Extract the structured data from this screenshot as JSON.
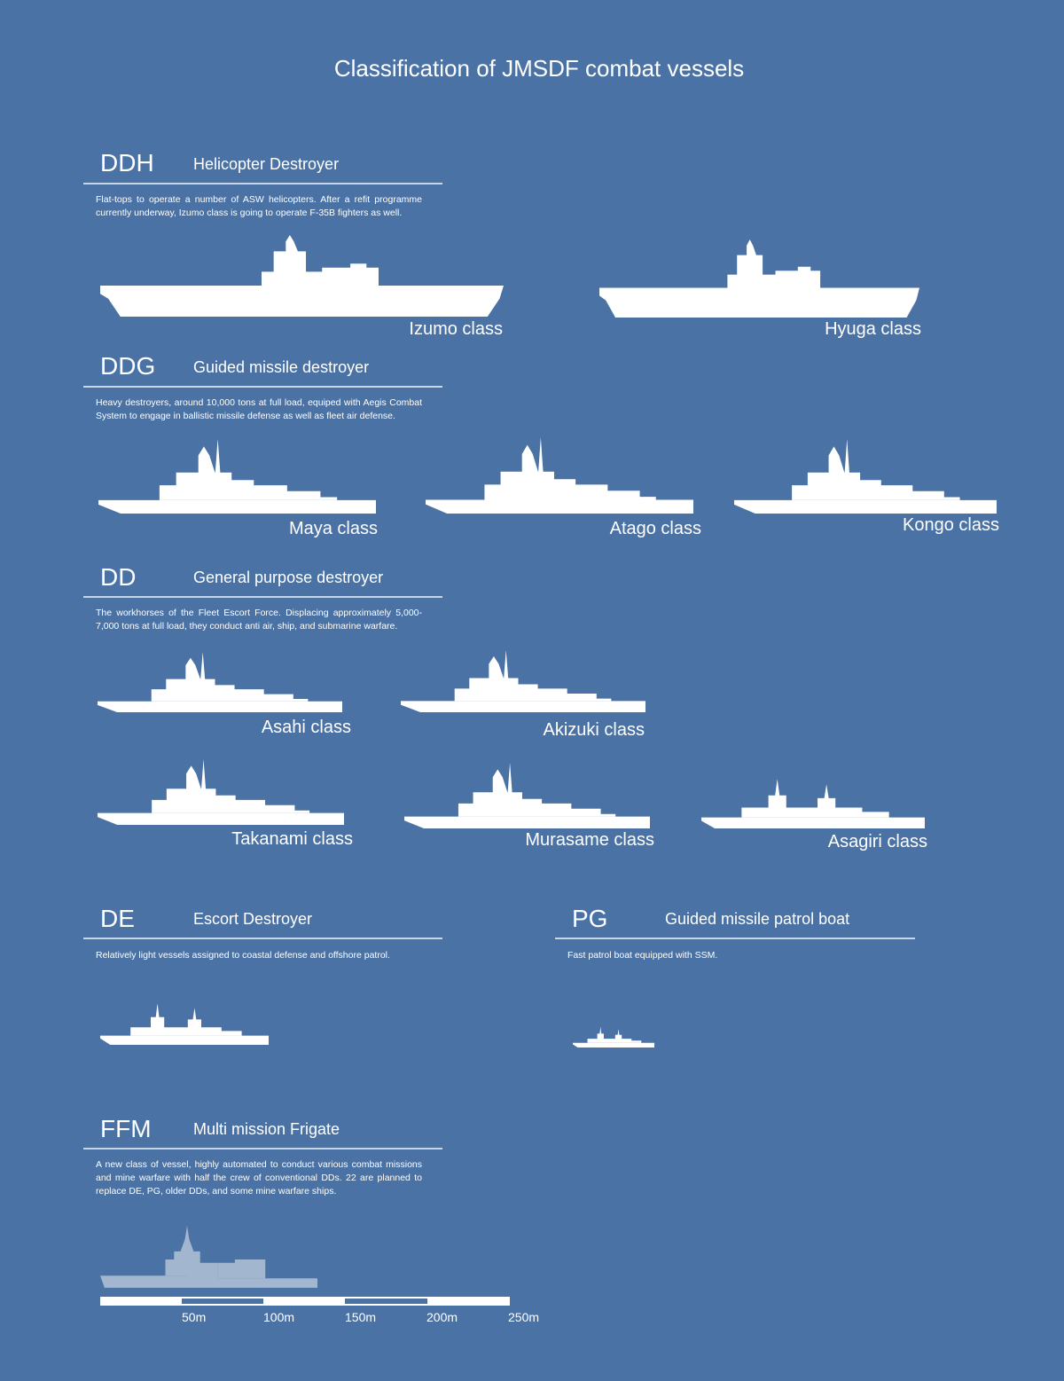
{
  "title": "Classification of JMSDF combat vessels",
  "sections": {
    "ddh": {
      "code": "DDH",
      "name": "Helicopter Destroyer",
      "desc": "Flat-tops to operate a number of ASW helicopters. After a refit programme currently underway, Izumo class is going to operate F-35B fighters as well.",
      "ships": [
        "Izumo class",
        "Hyuga class"
      ]
    },
    "ddg": {
      "code": "DDG",
      "name": "Guided missile destroyer",
      "desc": "Heavy destroyers, around 10,000 tons at full load, equiped with Aegis Combat System to engage in ballistic missile defense as well as fleet air defense.",
      "ships": [
        "Maya class",
        "Atago class",
        "Kongo class"
      ]
    },
    "dd": {
      "code": "DD",
      "name": "General purpose destroyer",
      "desc": "The workhorses of the Fleet Escort Force. Displacing approximately 5,000-7,000 tons at full load, they conduct anti air, ship, and submarine warfare.",
      "ships": [
        "Asahi class",
        "Akizuki class",
        "Takanami class",
        "Murasame class",
        "Asagiri class"
      ]
    },
    "de": {
      "code": "DE",
      "name": "Escort Destroyer",
      "desc": "Relatively light vessels assigned to coastal defense and offshore patrol."
    },
    "pg": {
      "code": "PG",
      "name": "Guided missile patrol boat",
      "desc": "Fast patrol boat equipped with SSM."
    },
    "ffm": {
      "code": "FFM",
      "name": "Multi mission Frigate",
      "desc": "A new class of vessel, highly automated to conduct various combat missions and mine warfare with half the crew of conventional DDs. 22 are planned to replace DE, PG, older DDs, and some mine warfare ships."
    }
  },
  "scale": {
    "labels": [
      "50m",
      "100m",
      "150m",
      "200m",
      "250m"
    ]
  },
  "colors": {
    "background": "#4a72a4",
    "silhouette": "#ffffff",
    "ffm_silhouette": "#a3b6d0"
  }
}
